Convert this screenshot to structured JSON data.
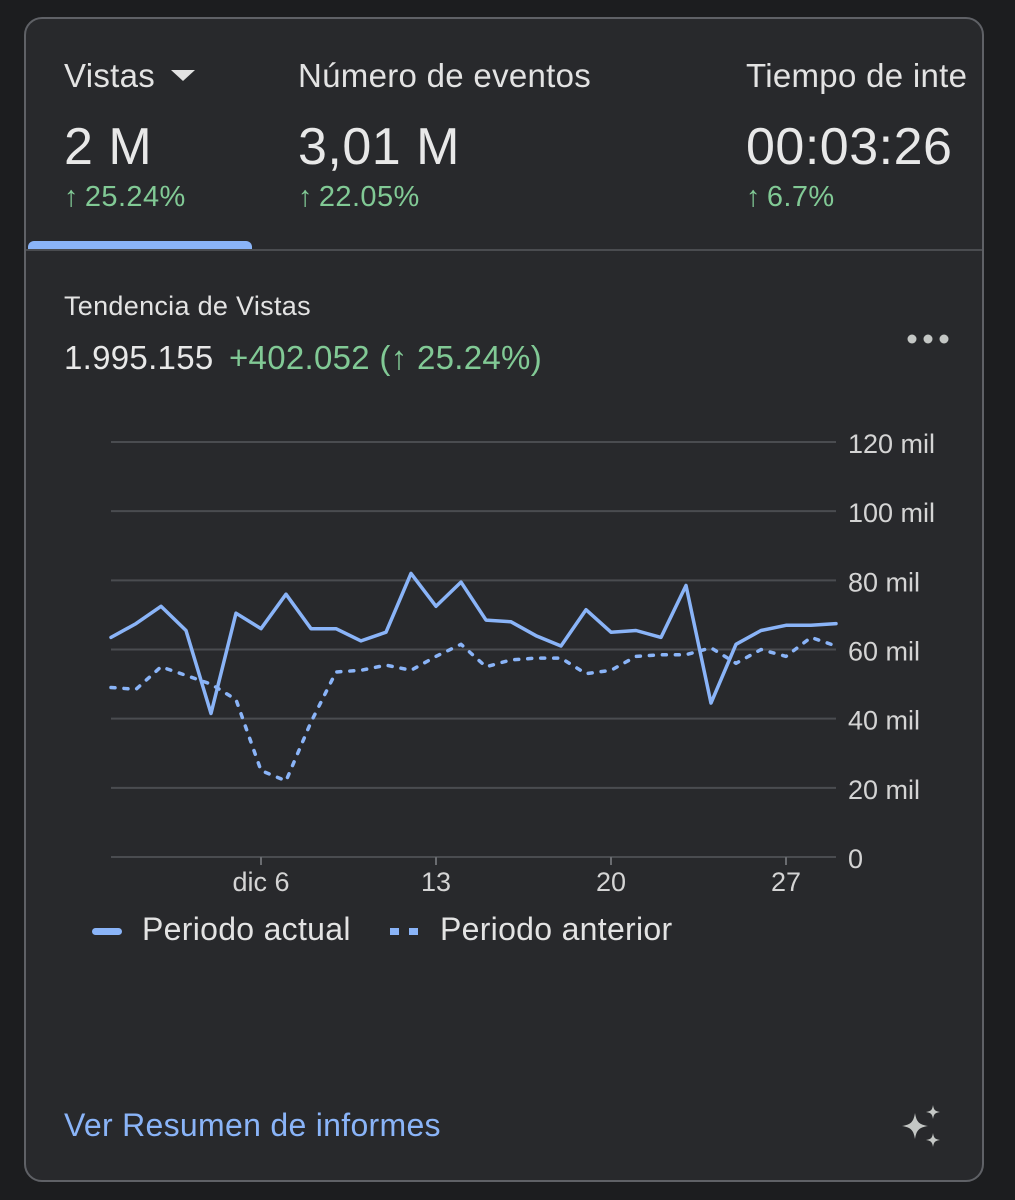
{
  "tabs": [
    {
      "title": "Vistas",
      "value": "2 M",
      "change_arrow": "↑",
      "change": "25.24%",
      "has_dropdown": true,
      "selected": true
    },
    {
      "title": "Número de eventos",
      "value": "3,01 M",
      "change_arrow": "↑",
      "change": "22.05%"
    },
    {
      "title": "Tiempo de inte",
      "value": "00:03:26",
      "change_arrow": "↑",
      "change": "6.7%"
    }
  ],
  "trend": {
    "title": "Tendencia de Vistas",
    "total": "1.995.155",
    "delta": "+402.052 (↑ 25.24%)",
    "more_icon": "more-horiz-icon"
  },
  "chart_data": {
    "type": "line",
    "ylim": [
      0,
      120000
    ],
    "y_ticks": [
      0,
      20000,
      40000,
      60000,
      80000,
      100000,
      120000
    ],
    "y_tick_labels": [
      "0",
      "20 mil",
      "40 mil",
      "60 mil",
      "80 mil",
      "100 mil",
      "120 mil"
    ],
    "x_domain": [
      1,
      29
    ],
    "x_ticks": [
      6,
      13,
      20,
      27
    ],
    "x_tick_labels": [
      "dic 6",
      "13",
      "20",
      "27"
    ],
    "grid": true,
    "legend_position": "bottom-left",
    "series": [
      {
        "name": "Periodo actual",
        "style": "solid",
        "color": "#8ab4f8",
        "x": [
          0,
          1,
          2,
          3,
          4,
          5,
          6,
          7,
          8,
          9,
          10,
          11,
          12,
          13,
          14,
          15,
          16,
          17,
          18,
          19,
          20,
          21,
          22,
          23,
          24,
          25,
          26,
          27,
          28,
          29
        ],
        "values": [
          63500,
          67500,
          72500,
          65500,
          41500,
          70500,
          66000,
          76000,
          66000,
          66000,
          62500,
          65000,
          82000,
          72500,
          79500,
          68500,
          68000,
          64000,
          61000,
          71500,
          65000,
          65500,
          63500,
          78500,
          44500,
          61500,
          65500,
          67000,
          67000,
          67500
        ]
      },
      {
        "name": "Periodo anterior",
        "style": "dotted",
        "color": "#8ab4f8",
        "x": [
          0,
          1,
          2,
          3,
          4,
          5,
          6,
          7,
          8,
          9,
          10,
          11,
          12,
          13,
          14,
          15,
          16,
          17,
          18,
          19,
          20,
          21,
          22,
          23,
          24,
          25,
          26,
          27,
          28,
          29
        ],
        "values": [
          49000,
          48500,
          55000,
          52500,
          50000,
          45500,
          25000,
          22000,
          39000,
          53500,
          54000,
          55500,
          54000,
          58000,
          61500,
          55000,
          57000,
          57500,
          57500,
          53000,
          54000,
          58000,
          58500,
          58500,
          60500,
          56000,
          60000,
          58000,
          63500,
          61000
        ]
      }
    ]
  },
  "legend": {
    "current_label": "Periodo actual",
    "previous_label": "Periodo anterior"
  },
  "footer": {
    "link_label": "Ver Resumen de informes",
    "sparkle_icon": "sparkle-icon"
  }
}
